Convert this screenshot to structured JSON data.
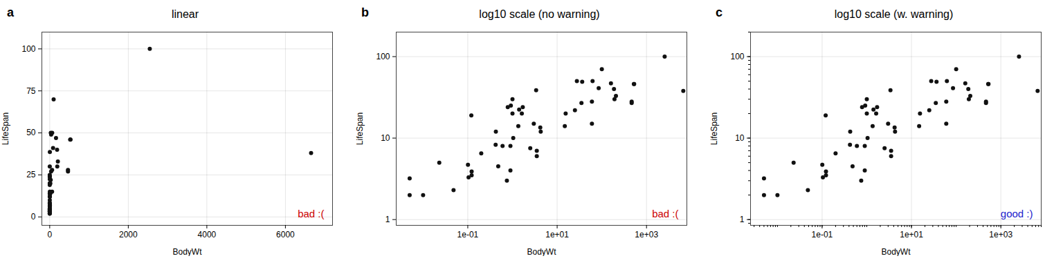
{
  "chart_data": [
    {
      "type": "scatter",
      "label": "a",
      "title": "linear",
      "x_label": "BodyWt",
      "y_label": "LifeSpan",
      "x": [
        3.385,
        0.48,
        1.35,
        465.0,
        36.33,
        27.66,
        14.83,
        1.04,
        4.19,
        0.425,
        0.101,
        0.92,
        1.0,
        0.005,
        2547.0,
        187.1,
        521.0,
        100.0,
        35.0,
        0.12,
        1.0,
        60.0,
        3.5,
        0.023,
        0.785,
        0.2,
        1.41,
        60.0,
        529.0,
        207.0,
        85.0,
        0.75,
        62.0,
        6654.0,
        3.5,
        15.5,
        0.122,
        0.048,
        1.7,
        25.0,
        4.288,
        0.122,
        0.9,
        0.01,
        0.005,
        0.6,
        3.0,
        160.0,
        0.9,
        1.62,
        192.0,
        2.5,
        465.0,
        0.104,
        0.42
      ],
      "values": [
        38.6,
        4.5,
        14.0,
        27.0,
        49.0,
        50.0,
        14.0,
        10.0,
        13.5,
        12.0,
        4.7,
        25.0,
        20.0,
        3.2,
        100.0,
        40.0,
        46.0,
        70.0,
        27.0,
        19.0,
        30.0,
        15.0,
        7.0,
        5.0,
        24.0,
        6.5,
        22.4,
        28.0,
        46.0,
        33.0,
        41.0,
        3.0,
        50.0,
        38.0,
        6.0,
        20.0,
        3.9,
        2.3,
        24.0,
        22.0,
        12.0,
        3.5,
        4.0,
        2.0,
        2.0,
        8.0,
        15.0,
        47.0,
        8.0,
        20.0,
        30.0,
        7.5,
        28.0,
        3.3,
        8.3
      ],
      "color": "#111111",
      "xlim": [
        -200,
        7200
      ],
      "ylim": [
        -5,
        110
      ],
      "xticks": [
        0,
        2000,
        4000,
        6000
      ],
      "yticks": [
        0,
        25,
        50,
        75,
        100
      ],
      "grid": true,
      "annotations": [
        {
          "text": "bad :(",
          "color": "#cc0000"
        }
      ]
    },
    {
      "type": "scatter",
      "label": "b",
      "title": "log10 scale (no warning)",
      "x_label": "BodyWt",
      "y_label": "LifeSpan",
      "x": [
        3.385,
        0.48,
        1.35,
        465.0,
        36.33,
        27.66,
        14.83,
        1.04,
        4.19,
        0.425,
        0.101,
        0.92,
        1.0,
        0.005,
        2547.0,
        187.1,
        521.0,
        100.0,
        35.0,
        0.12,
        1.0,
        60.0,
        3.5,
        0.023,
        0.785,
        0.2,
        1.41,
        60.0,
        529.0,
        207.0,
        85.0,
        0.75,
        62.0,
        6654.0,
        3.5,
        15.5,
        0.122,
        0.048,
        1.7,
        25.0,
        4.288,
        0.122,
        0.9,
        0.01,
        0.005,
        0.6,
        3.0,
        160.0,
        0.9,
        1.62,
        192.0,
        2.5,
        465.0,
        0.104,
        0.42
      ],
      "values": [
        38.6,
        4.5,
        14.0,
        27.0,
        49.0,
        50.0,
        14.0,
        10.0,
        13.5,
        12.0,
        4.7,
        25.0,
        20.0,
        3.2,
        100.0,
        40.0,
        46.0,
        70.0,
        27.0,
        19.0,
        30.0,
        15.0,
        7.0,
        5.0,
        24.0,
        6.5,
        22.4,
        28.0,
        46.0,
        33.0,
        41.0,
        3.0,
        50.0,
        38.0,
        6.0,
        20.0,
        3.9,
        2.3,
        24.0,
        22.0,
        12.0,
        3.5,
        4.0,
        2.0,
        2.0,
        8.0,
        15.0,
        47.0,
        8.0,
        20.0,
        30.0,
        7.5,
        28.0,
        3.3,
        8.3
      ],
      "color": "#111111",
      "log": true,
      "xlim": [
        0.0025,
        8000
      ],
      "ylim": [
        0.85,
        200
      ],
      "xticks": [
        {
          "value": 0.1,
          "label": "1e-01"
        },
        {
          "value": 10.0,
          "label": "1e+01"
        },
        {
          "value": 1000.0,
          "label": "1e+03"
        }
      ],
      "yticks": [
        1,
        10,
        100
      ],
      "grid": true,
      "annotations": [
        {
          "text": "bad :(",
          "color": "#cc0000"
        }
      ]
    },
    {
      "type": "scatter",
      "label": "c",
      "title": "log10 scale (w. warning)",
      "x_label": "BodyWt",
      "y_label": "LifeSpan",
      "x": [
        3.385,
        0.48,
        1.35,
        465.0,
        36.33,
        27.66,
        14.83,
        1.04,
        4.19,
        0.425,
        0.101,
        0.92,
        1.0,
        0.005,
        2547.0,
        187.1,
        521.0,
        100.0,
        35.0,
        0.12,
        1.0,
        60.0,
        3.5,
        0.023,
        0.785,
        0.2,
        1.41,
        60.0,
        529.0,
        207.0,
        85.0,
        0.75,
        62.0,
        6654.0,
        3.5,
        15.5,
        0.122,
        0.048,
        1.7,
        25.0,
        4.288,
        0.122,
        0.9,
        0.01,
        0.005,
        0.6,
        3.0,
        160.0,
        0.9,
        1.62,
        192.0,
        2.5,
        465.0,
        0.104,
        0.42
      ],
      "values": [
        38.6,
        4.5,
        14.0,
        27.0,
        49.0,
        50.0,
        14.0,
        10.0,
        13.5,
        12.0,
        4.7,
        25.0,
        20.0,
        3.2,
        100.0,
        40.0,
        46.0,
        70.0,
        27.0,
        19.0,
        30.0,
        15.0,
        7.0,
        5.0,
        24.0,
        6.5,
        22.4,
        28.0,
        46.0,
        33.0,
        41.0,
        3.0,
        50.0,
        38.0,
        6.0,
        20.0,
        3.9,
        2.3,
        24.0,
        22.0,
        12.0,
        3.5,
        4.0,
        2.0,
        2.0,
        8.0,
        15.0,
        47.0,
        8.0,
        20.0,
        30.0,
        7.5,
        28.0,
        3.3,
        8.3
      ],
      "color": "#111111",
      "log": true,
      "xlim": [
        0.0025,
        8000
      ],
      "ylim": [
        0.85,
        200
      ],
      "xticks": [
        {
          "value": 0.1,
          "label": "1e-01"
        },
        {
          "value": 10.0,
          "label": "1e+01"
        },
        {
          "value": 1000.0,
          "label": "1e+03"
        }
      ],
      "yticks": [
        1,
        10,
        100
      ],
      "grid": true,
      "annotations": [
        {
          "text": "good :)",
          "color": "#2222cc"
        }
      ]
    }
  ]
}
